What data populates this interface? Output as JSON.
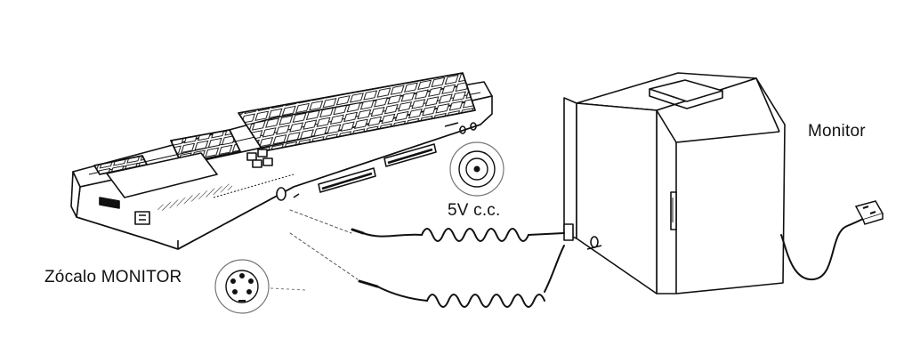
{
  "labels": {
    "monitor": "Monitor",
    "power": "5V c.c.",
    "monitor_socket": "Zócalo MONITOR"
  },
  "colors": {
    "ink": "#111111",
    "background": "#ffffff",
    "dashed_leader": "#555555"
  },
  "icons": {
    "computer": "computer-keyboard-drawing",
    "monitor": "crt-monitor-drawing",
    "power_connector": "dc-jack-icon",
    "video_connector": "din-socket-icon",
    "mains_plug": "mains-plug-icon"
  }
}
